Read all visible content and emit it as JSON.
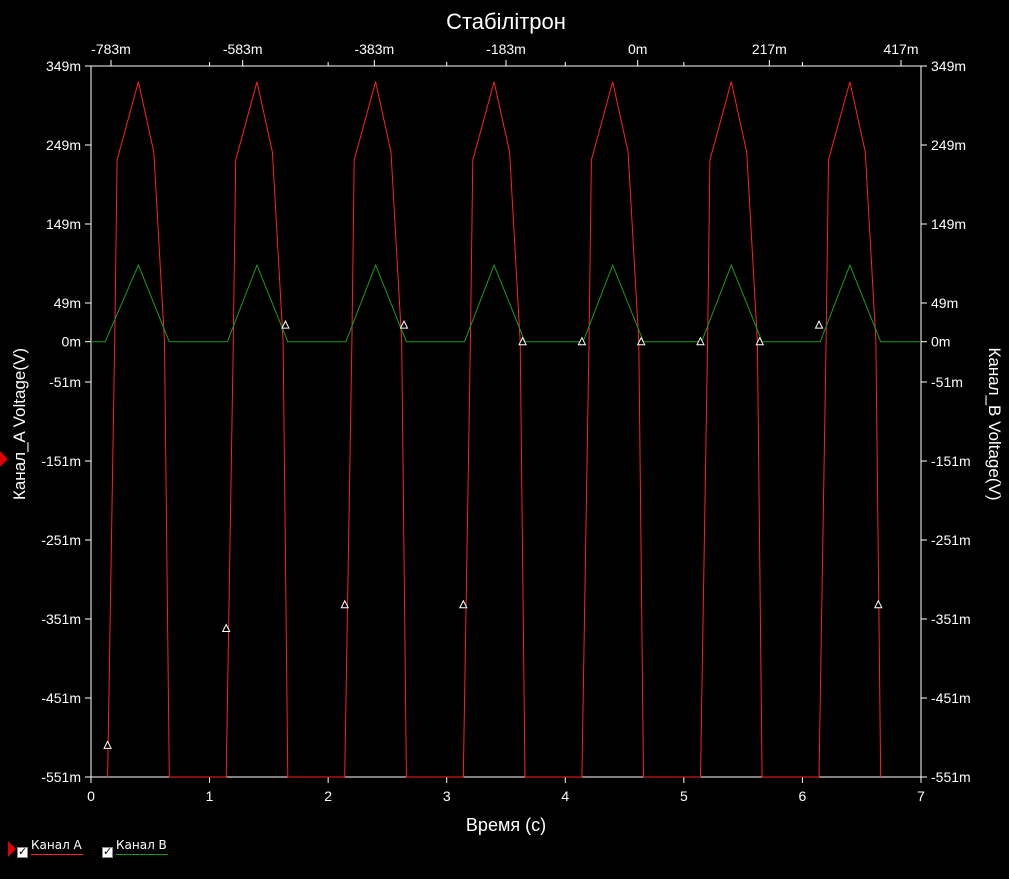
{
  "chart_data": {
    "type": "line",
    "title": "Стабілітрон",
    "xlabel": "Время (с)",
    "ylabel_left": "Канал_A Voltage(V)",
    "ylabel_right": "Канал_B Voltage(V)",
    "xlim": [
      0,
      7
    ],
    "ylim": [
      -0.551,
      0.349
    ],
    "x_ticks": [
      "0",
      "1",
      "2",
      "3",
      "4",
      "5",
      "6",
      "7"
    ],
    "top_ticks": [
      "-783m",
      "-583m",
      "-383m",
      "-183m",
      "0m",
      "217m",
      "417m"
    ],
    "y_ticks": [
      {
        "v": 0.349,
        "label": "349m"
      },
      {
        "v": 0.249,
        "label": "249m"
      },
      {
        "v": 0.149,
        "label": "149m"
      },
      {
        "v": 0.049,
        "label": "49m"
      },
      {
        "v": 0,
        "label": "0m"
      },
      {
        "v": -0.051,
        "label": "-51m"
      },
      {
        "v": -0.151,
        "label": "-151m"
      },
      {
        "v": -0.251,
        "label": "-251m"
      },
      {
        "v": -0.351,
        "label": "-351m"
      },
      {
        "v": -0.451,
        "label": "-451m"
      },
      {
        "v": -0.551,
        "label": "-551m"
      }
    ],
    "grid": false,
    "legend_position": "bottom-left",
    "series": [
      {
        "name": "Канал A",
        "color": "#ff2020",
        "x": [
          0.14,
          0.2,
          0.22,
          0.4,
          0.53,
          0.62,
          0.66,
          1.14,
          1.2,
          1.22,
          1.4,
          1.53,
          1.62,
          1.66,
          2.14,
          2.2,
          2.22,
          2.4,
          2.53,
          2.62,
          2.66,
          3.14,
          3.2,
          3.22,
          3.4,
          3.53,
          3.62,
          3.66,
          4.14,
          4.2,
          4.22,
          4.4,
          4.53,
          4.62,
          4.66,
          5.14,
          5.2,
          5.22,
          5.4,
          5.53,
          5.62,
          5.66,
          6.14,
          6.2,
          6.22,
          6.4,
          6.53,
          6.62,
          6.66
        ],
        "y": [
          -0.551,
          0.0,
          0.23,
          0.329,
          0.24,
          0.0,
          -0.551,
          -0.551,
          0.0,
          0.23,
          0.329,
          0.24,
          0.0,
          -0.551,
          -0.551,
          0.0,
          0.23,
          0.329,
          0.24,
          0.0,
          -0.551,
          -0.551,
          0.0,
          0.23,
          0.329,
          0.24,
          0.0,
          -0.551,
          -0.551,
          0.0,
          0.23,
          0.329,
          0.24,
          0.0,
          -0.551,
          -0.551,
          0.0,
          0.23,
          0.329,
          0.24,
          0.0,
          -0.551,
          -0.551,
          0.0,
          0.23,
          0.329,
          0.24,
          0.0,
          -0.551
        ]
      },
      {
        "name": "Канал B",
        "color": "#1a9a1a",
        "x": [
          0,
          0.12,
          0.4,
          0.66,
          1.15,
          1.4,
          1.66,
          2.15,
          2.4,
          2.66,
          3.15,
          3.4,
          3.66,
          4.15,
          4.4,
          4.66,
          5.15,
          5.4,
          5.66,
          6.15,
          6.4,
          6.66,
          7.0
        ],
        "y": [
          0,
          0,
          0.097,
          0,
          0,
          0.097,
          0,
          0,
          0.097,
          0,
          0,
          0.097,
          0,
          0,
          0.097,
          0,
          0,
          0.097,
          0,
          0,
          0.097,
          0,
          0
        ]
      }
    ],
    "cursor_markers": [
      {
        "x": 0.14,
        "y": -0.511
      },
      {
        "x": 1.14,
        "y": -0.363
      },
      {
        "x": 1.64,
        "y": 0.021
      },
      {
        "x": 2.14,
        "y": -0.333
      },
      {
        "x": 2.64,
        "y": 0.021
      },
      {
        "x": 3.14,
        "y": -0.333
      },
      {
        "x": 3.64,
        "y": 0.0
      },
      {
        "x": 4.14,
        "y": 0.0
      },
      {
        "x": 4.64,
        "y": 0.0
      },
      {
        "x": 5.14,
        "y": 0.0
      },
      {
        "x": 5.64,
        "y": 0.0
      },
      {
        "x": 6.14,
        "y": 0.021
      },
      {
        "x": 6.64,
        "y": -0.333
      }
    ]
  },
  "legend": {
    "a_label": "Канал A",
    "b_label": "Канал B",
    "a_color": "#ff2020",
    "b_color": "#1a9a1a"
  }
}
